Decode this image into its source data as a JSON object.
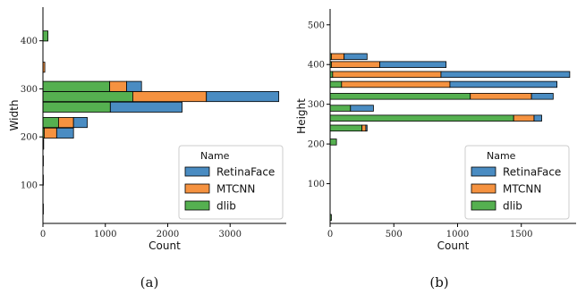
{
  "colors": {
    "RetinaFace": "#4a8cc2",
    "MTCNN": "#f59240",
    "dlib": "#55b050"
  },
  "chart_data": [
    {
      "type": "bar",
      "orientation": "horizontal-stacked",
      "caption": "(a)",
      "xlabel": "Count",
      "ylabel": "Width",
      "xlim": [
        0,
        3900
      ],
      "ylim": [
        20,
        470
      ],
      "xticks": [
        0,
        1000,
        2000,
        3000
      ],
      "yticks": [
        100,
        200,
        300,
        400
      ],
      "legend": {
        "title": "Name",
        "position": "bottom-right",
        "entries": [
          "RetinaFace",
          "MTCNN",
          "dlib"
        ]
      },
      "bin_centers": [
        50,
        110,
        150,
        185,
        208,
        230,
        262,
        284,
        305,
        325,
        345,
        365,
        410
      ],
      "bin_height": 21,
      "series": [
        {
          "name": "dlib",
          "values": [
            5,
            5,
            5,
            5,
            20,
            250,
            1080,
            1440,
            1070,
            0,
            0,
            0,
            80
          ]
        },
        {
          "name": "MTCNN",
          "values": [
            0,
            0,
            0,
            5,
            200,
            240,
            0,
            1180,
            270,
            0,
            30,
            0,
            0
          ]
        },
        {
          "name": "RetinaFace",
          "values": [
            0,
            0,
            0,
            0,
            270,
            220,
            1150,
            1160,
            240,
            0,
            0,
            0,
            0
          ]
        }
      ]
    },
    {
      "type": "bar",
      "orientation": "horizontal-stacked",
      "caption": "(b)",
      "xlabel": "Count",
      "ylabel": "Height",
      "xlim": [
        0,
        1930
      ],
      "ylim": [
        0,
        540
      ],
      "xticks": [
        0,
        500,
        1000,
        1500
      ],
      "yticks": [
        100,
        200,
        300,
        400,
        500
      ],
      "legend": {
        "title": "Name",
        "position": "bottom-right",
        "entries": [
          "RetinaFace",
          "MTCNN",
          "dlib"
        ]
      },
      "bin_centers": [
        15,
        205,
        240,
        265,
        290,
        320,
        350,
        375,
        400,
        420
      ],
      "bin_height": 15,
      "series": [
        {
          "name": "dlib",
          "values": [
            10,
            50,
            250,
            1440,
            160,
            1100,
            90,
            20,
            10,
            10
          ]
        },
        {
          "name": "MTCNN",
          "values": [
            0,
            0,
            30,
            160,
            0,
            480,
            850,
            850,
            380,
            100
          ]
        },
        {
          "name": "RetinaFace",
          "values": [
            0,
            0,
            10,
            60,
            180,
            170,
            840,
            1010,
            520,
            180
          ]
        }
      ]
    }
  ]
}
